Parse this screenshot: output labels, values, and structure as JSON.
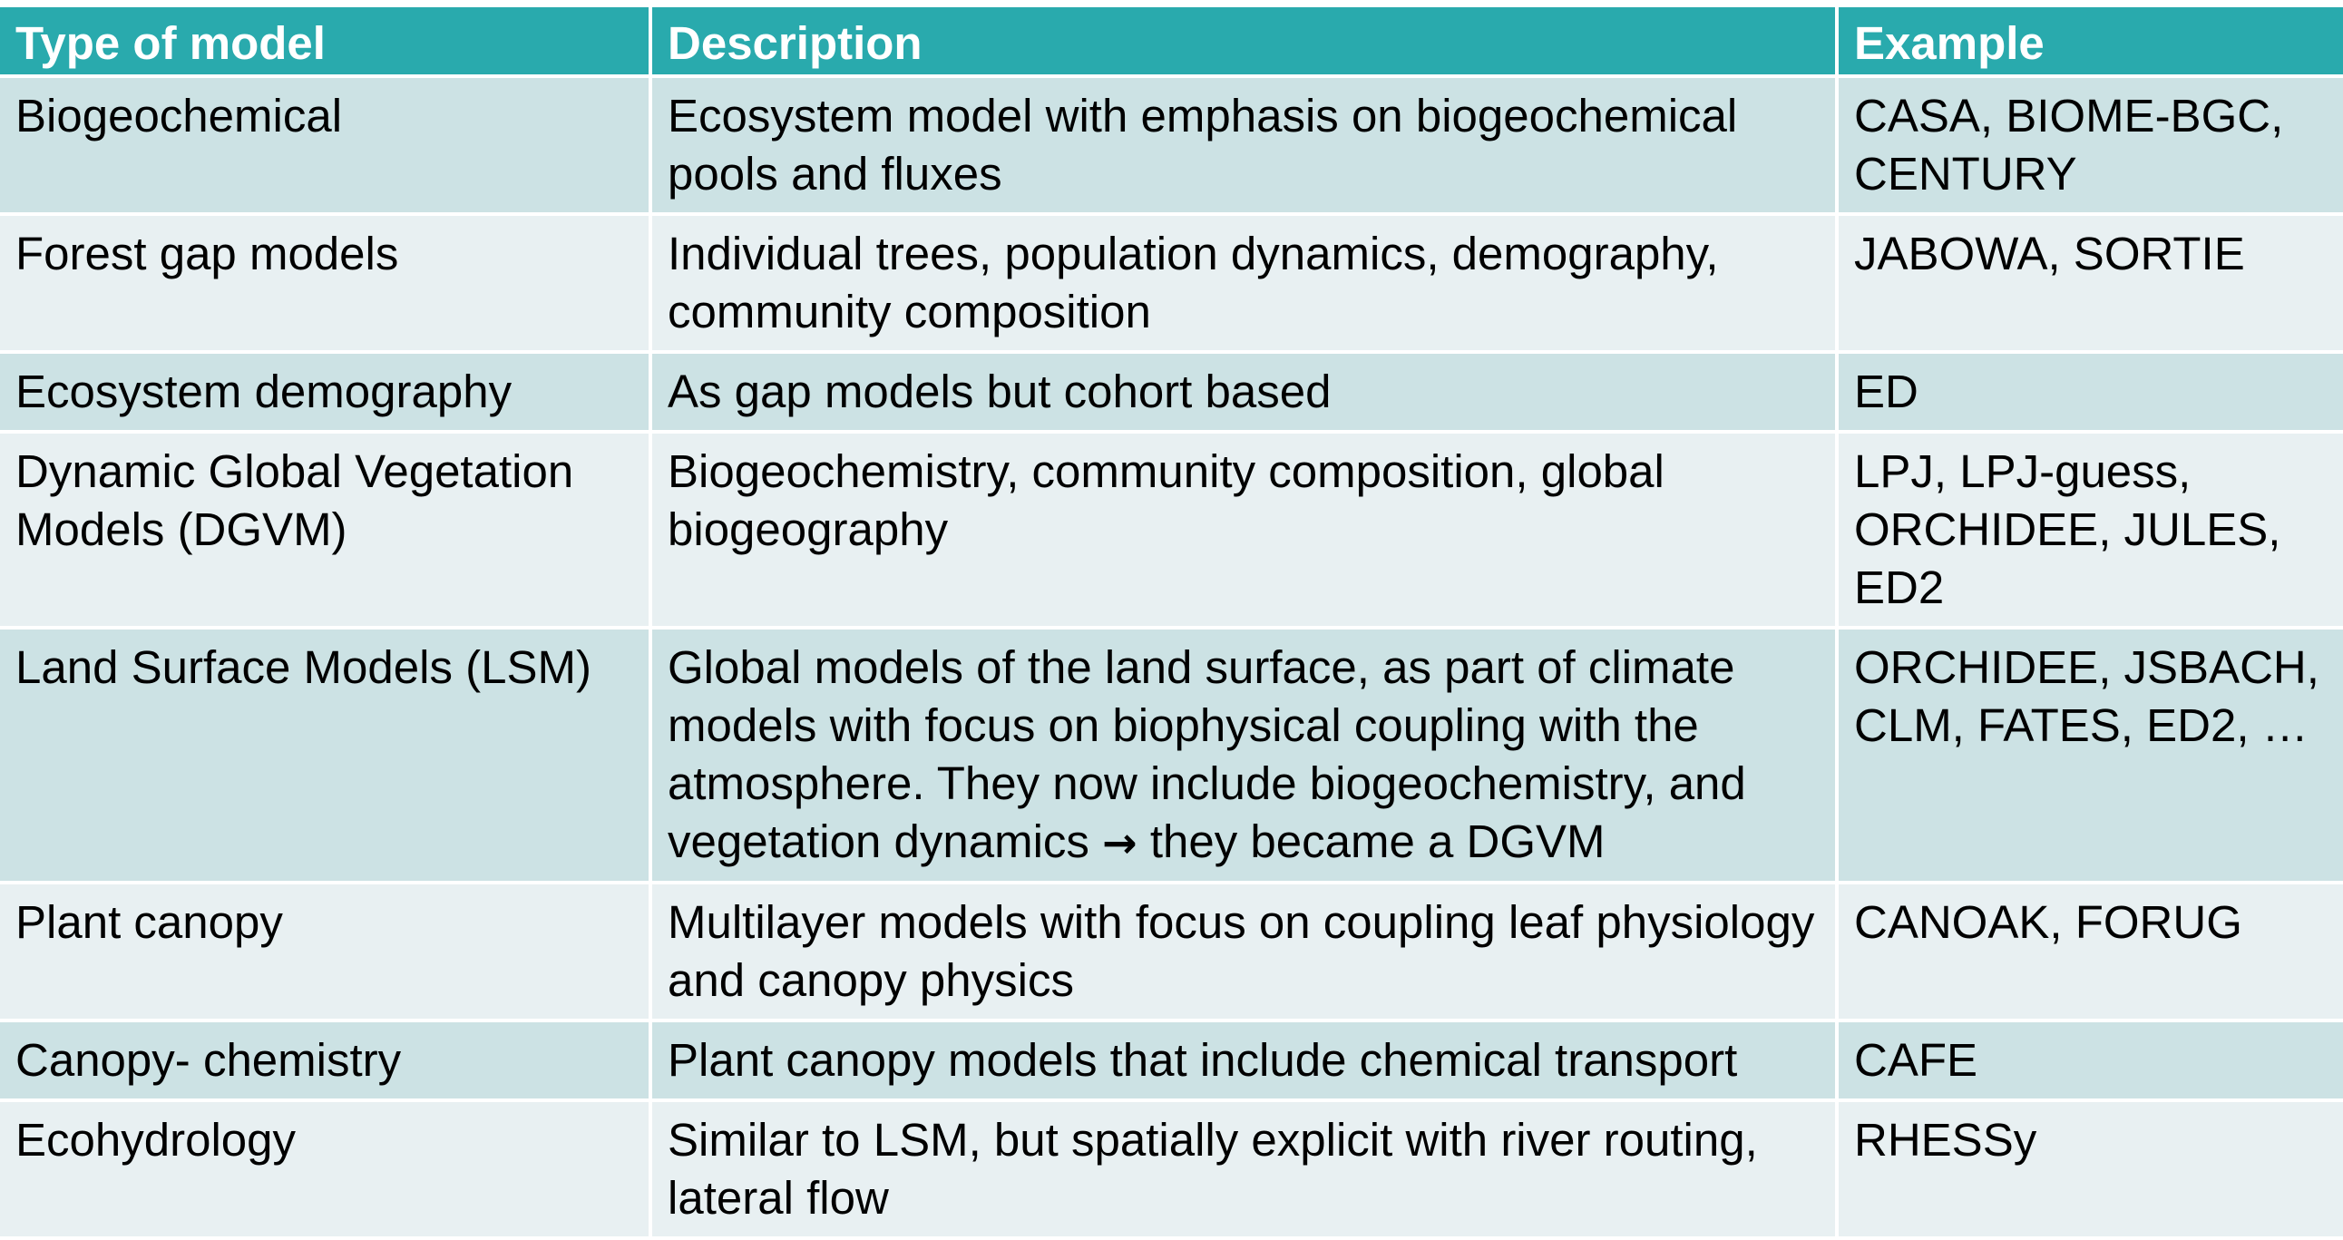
{
  "table": {
    "headers": [
      "Type of model",
      "Description",
      "Example"
    ],
    "rows": [
      {
        "type": "Biogeochemical",
        "description": "Ecosystem model with emphasis on biogeochemical pools and fluxes",
        "example": "CASA, BIOME-BGC, CENTURY"
      },
      {
        "type": "Forest gap models",
        "description": "Individual trees, population dynamics, demography, community composition",
        "example": "JABOWA, SORTIE"
      },
      {
        "type": "Ecosystem demography",
        "description": "As gap models but cohort based",
        "example": "ED"
      },
      {
        "type": "Dynamic Global Vegetation Models (DGVM)",
        "description": "Biogeochemistry, community composition, global biogeography",
        "example": "LPJ, LPJ-guess, ORCHIDEE, JULES, ED2"
      },
      {
        "type": "Land Surface Models (LSM)",
        "description_before": "Global models of the land surface, as part of climate models with focus on biophysical coupling with the atmosphere.  They now include biogeochemistry, and vegetation dynamics ",
        "description_arrow": "→",
        "description_after": " they became a DGVM",
        "example": "ORCHIDEE, JSBACH, CLM, FATES, ED2, …"
      },
      {
        "type": "Plant canopy",
        "description": "Multilayer models with focus on coupling leaf physiology  and canopy physics",
        "example": "CANOAK, FORUG"
      },
      {
        "type": "Canopy- chemistry",
        "description": "Plant canopy models that include chemical transport",
        "example": "CAFE"
      },
      {
        "type": "Ecohydrology",
        "description": "Similar to LSM, but spatially explicit with river routing, lateral flow",
        "example": "RHESSy"
      }
    ]
  },
  "colors": {
    "header_bg": "#29AAAD",
    "row_odd_bg": "#CCE2E4",
    "row_even_bg": "#E8F0F2",
    "header_text": "#FFFFFF",
    "body_text": "#000000"
  }
}
